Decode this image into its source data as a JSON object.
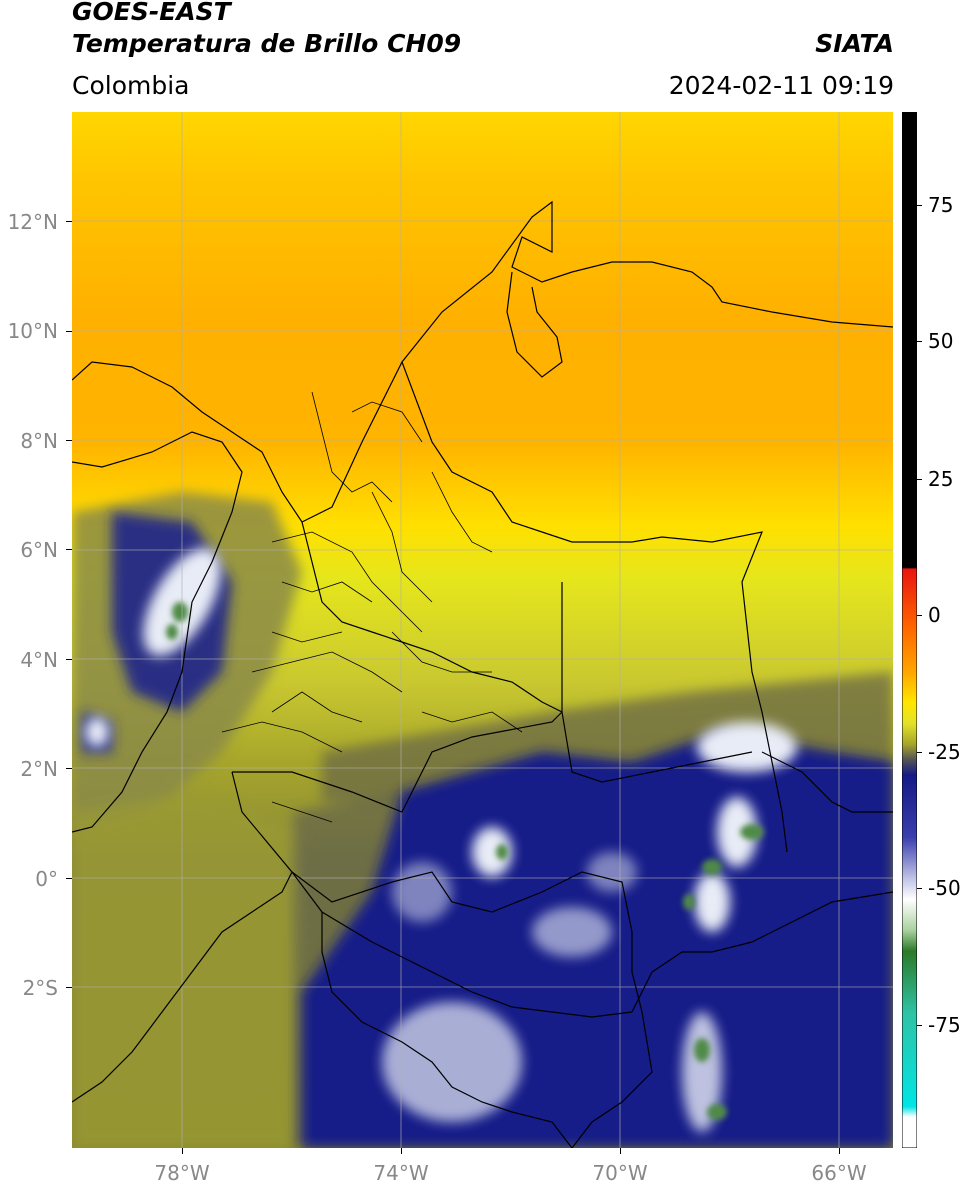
{
  "header": {
    "line1": "GOES-EAST",
    "line2": "Temperatura de Brillo CH09",
    "brand": "SIATA",
    "region": "Colombia",
    "datetime": "2024-02-11 09:19"
  },
  "map": {
    "lat_labels": [
      "12°N",
      "10°N",
      "8°N",
      "6°N",
      "4°N",
      "2°N",
      "0°",
      "2°S"
    ],
    "lon_labels": [
      "78°W",
      "74°W",
      "70°W",
      "66°W"
    ]
  },
  "colorbar": {
    "ticks": [
      "75",
      "50",
      "25",
      "0",
      "-25",
      "-50",
      "-75"
    ],
    "colors": {
      "black": "#000000",
      "red": "#e8150f",
      "orange": "#ffa500",
      "yellow": "#ffe600",
      "olive": "#a7a62a",
      "grey": "#555555",
      "navy": "#151a86",
      "white": "#ffffff",
      "green": "#2c7a27",
      "teal": "#2ec3a6",
      "cyan": "#00e5e5"
    }
  }
}
